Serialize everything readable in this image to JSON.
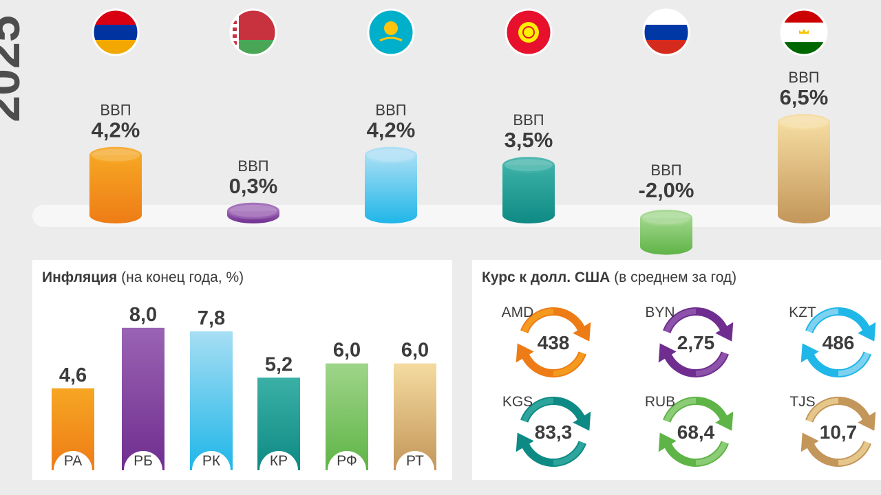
{
  "year_label": "2025",
  "colors": {
    "orange": [
      "#f6a623",
      "#ee7c16"
    ],
    "purple": [
      "#9a63b3",
      "#6f2e8f"
    ],
    "lightblue": [
      "#a7def4",
      "#1fb6e8"
    ],
    "teal": [
      "#3bb0a6",
      "#0e8a84"
    ],
    "green": [
      "#9fd58a",
      "#5fb447"
    ],
    "tan": [
      "#f5dba0",
      "#c3965a"
    ]
  },
  "gdp": {
    "label": "ВВП",
    "flags": [
      "armenia-flag",
      "belarus-flag",
      "kazakhstan-flag",
      "kyrgyzstan-flag",
      "russia-flag",
      "tajikistan-flag"
    ]
  },
  "chart_data": [
    {
      "type": "bar",
      "title": "",
      "categories": [
        "РА",
        "РБ",
        "РК",
        "КР",
        "РФ",
        "РТ"
      ],
      "series": [
        {
          "name": "ВВП",
          "values": [
            4.2,
            0.3,
            4.2,
            3.5,
            -2.0,
            6.5
          ]
        }
      ],
      "value_labels": [
        "4,2%",
        "0,3%",
        "4,2%",
        "3,5%",
        "-2,0%",
        "6,5%"
      ],
      "colors": [
        "orange",
        "purple",
        "lightblue",
        "teal",
        "green",
        "tan"
      ]
    },
    {
      "type": "bar",
      "title": "Инфляция",
      "subtitle": "(на конец года, %)",
      "categories": [
        "РА",
        "РБ",
        "РК",
        "КР",
        "РФ",
        "РТ"
      ],
      "values": [
        4.6,
        8.0,
        7.8,
        5.2,
        6.0,
        6.0
      ],
      "value_labels": [
        "4,6",
        "8,0",
        "7,8",
        "5,2",
        "6,0",
        "6,0"
      ],
      "colors": [
        "orange",
        "purple",
        "lightblue",
        "teal",
        "green",
        "tan"
      ]
    },
    {
      "type": "table",
      "title": "Курс к долл. США",
      "subtitle": "(в среднем за год)",
      "currencies": [
        "AMD",
        "BYN",
        "KZT",
        "KGS",
        "RUB",
        "TJS"
      ],
      "values": [
        438,
        2.75,
        486,
        83.3,
        68.4,
        10.7
      ],
      "value_labels": [
        "438",
        "2,75",
        "486",
        "83,3",
        "68,4",
        "10,7"
      ],
      "colors": [
        "orange",
        "purple",
        "lightblue",
        "teal",
        "green",
        "tan"
      ]
    }
  ]
}
